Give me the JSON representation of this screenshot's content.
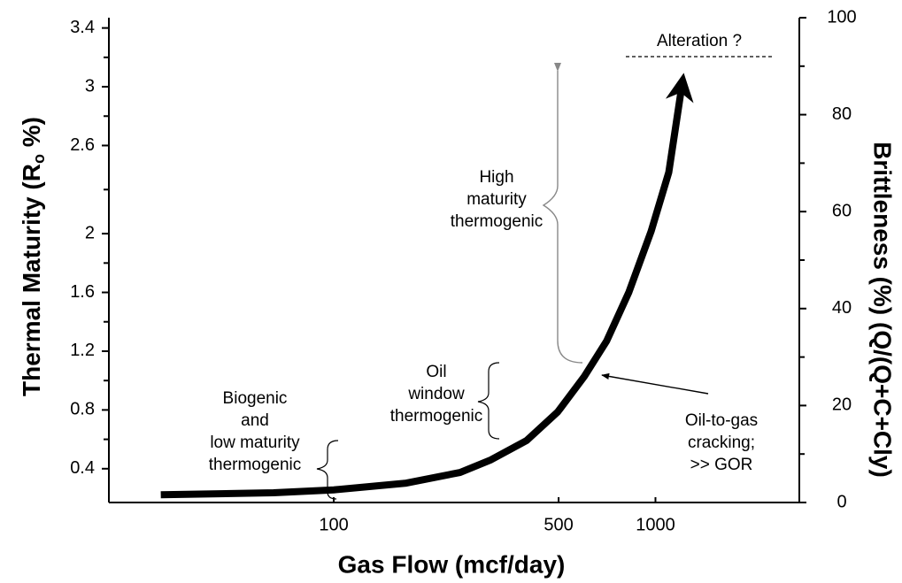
{
  "chart_data": {
    "type": "line",
    "xlabel": "Gas Flow (mcf/day)",
    "ylabel": [
      "Thermal Maturity (R",
      "o",
      " %)"
    ],
    "y2label": "Brittleness (%) (Q/(Q+C+Cly)",
    "xscale": "log",
    "xlim": [
      20,
      2800
    ],
    "xticks": [
      100,
      500,
      1000
    ],
    "ylim": [
      0.17,
      3.47
    ],
    "yticks": [
      3.4,
      3.0,
      2.6,
      2.0,
      1.6,
      1.2,
      0.8,
      0.4
    ],
    "yminor_ticks": [
      3.2,
      2.8,
      2.3,
      1.8,
      1.4,
      1.0,
      0.6
    ],
    "y2lim": [
      0,
      100
    ],
    "y2ticks": [
      0,
      20,
      40,
      60,
      80,
      100
    ],
    "y2minor_ticks": [
      10,
      30,
      50,
      70,
      90
    ],
    "series": [
      {
        "color": "#000000",
        "axis": "y2",
        "x": [
          29,
          65,
          100,
          168,
          247,
          308,
          398,
          497,
          601,
          705,
          827,
          969,
          1100,
          1210
        ],
        "values": [
          1.6,
          2.0,
          2.6,
          4.0,
          6.2,
          8.8,
          12.8,
          18.7,
          26.0,
          33.3,
          43.4,
          55.9,
          68.1,
          86.3
        ]
      }
    ],
    "annotations": [
      {
        "lines": [
          "Biogenic",
          "and",
          "low maturity",
          "thermogenic"
        ]
      },
      {
        "lines": [
          "Oil",
          "window",
          "thermogenic"
        ]
      },
      {
        "lines": [
          "High",
          "maturity",
          "thermogenic"
        ]
      },
      {
        "lines": [
          "Oil-to-gas",
          "cracking;",
          ">> GOR"
        ]
      },
      {
        "lines": [
          "Alteration ?"
        ]
      }
    ]
  }
}
